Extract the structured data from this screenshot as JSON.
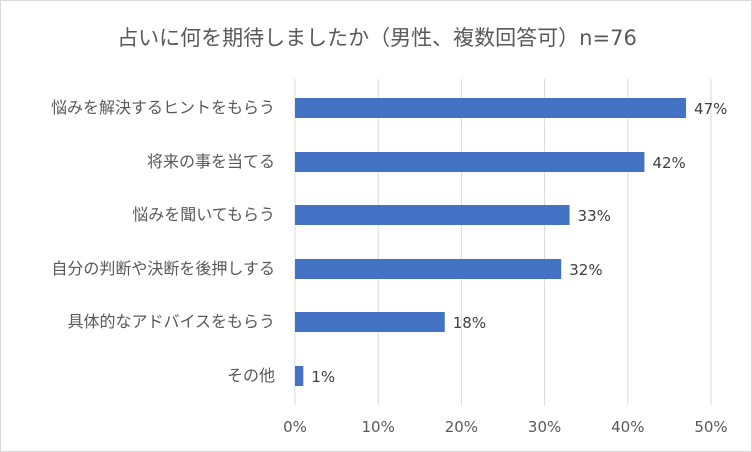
{
  "chart_data": {
    "type": "bar",
    "orientation": "horizontal",
    "title": "占いに何を期待しましたか（男性、複数回答可）n=76",
    "categories": [
      "悩みを解決するヒントをもらう",
      "将来の事を当てる",
      "悩みを聞いてもらう",
      "自分の判断や決断を後押しする",
      "具体的なアドバイスをもらう",
      "その他"
    ],
    "values": [
      47,
      42,
      33,
      32,
      18,
      1
    ],
    "data_labels": [
      "47%",
      "42%",
      "33%",
      "32%",
      "18%",
      "1%"
    ],
    "x_ticks": [
      "0%",
      "10%",
      "20%",
      "30%",
      "40%",
      "50%"
    ],
    "xlim": [
      0,
      50
    ],
    "grid": "vertical",
    "legend": "none",
    "bar_color": "#4472c4"
  }
}
